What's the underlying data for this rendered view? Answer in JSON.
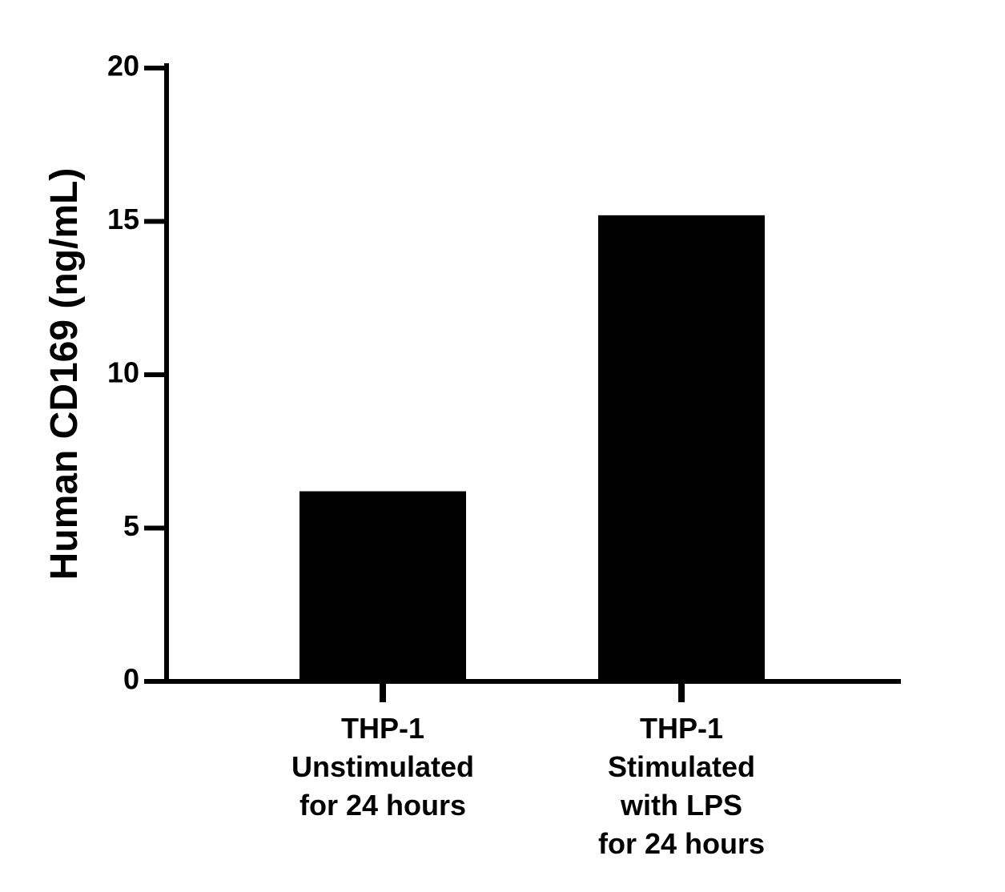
{
  "chart_data": {
    "type": "bar",
    "y_label": "Human CD169 (ng/mL)",
    "categories": [
      [
        "THP-1",
        "Unstimulated",
        "for 24 hours"
      ],
      [
        "THP-1",
        "Stimulated",
        "with LPS",
        "for 24 hours"
      ]
    ],
    "values": [
      6.2,
      15.2
    ],
    "color": "#000000",
    "ylim": [
      0,
      20
    ],
    "yticks": [
      0,
      5,
      10,
      15,
      20
    ],
    "grid": false
  }
}
